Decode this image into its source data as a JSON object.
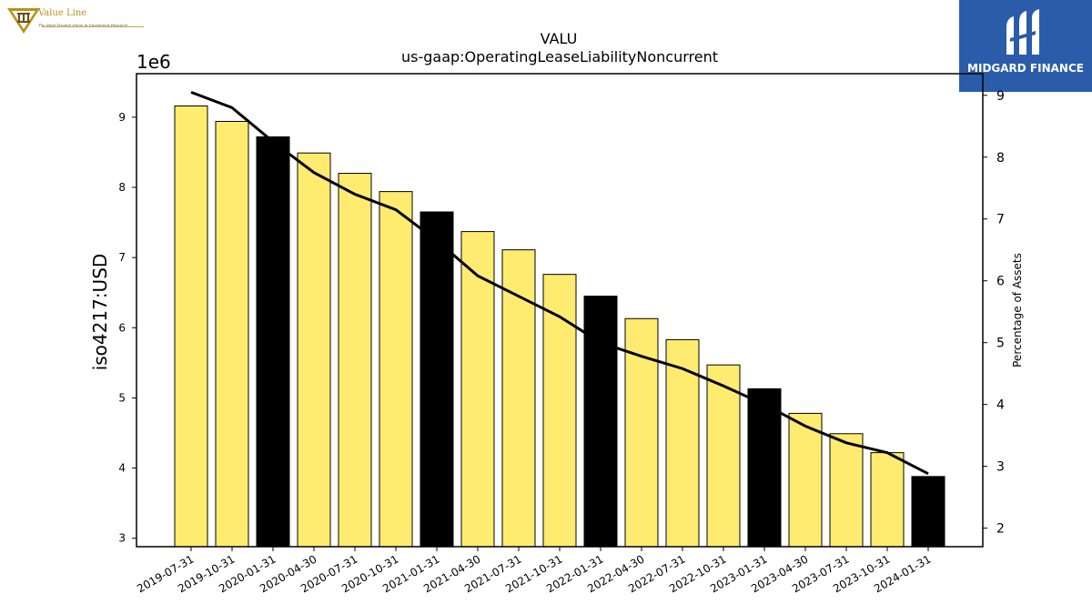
{
  "logos": {
    "left": {
      "name": "Value Line",
      "tagline": "The Most Trusted Name in Investment Research"
    },
    "right": {
      "name": "MIDGARD FINANCE"
    }
  },
  "chart_data": {
    "type": "bar",
    "title": "VALU",
    "subtitle": "us-gaap:OperatingLeaseLiabilityNoncurrent",
    "ylabel": "iso4217:USD",
    "y2label": "Percentage of Assets",
    "y_offset_label": "1e6",
    "ylim": [
      2.88,
      9.62
    ],
    "y2lim": [
      1.7,
      9.35
    ],
    "yticks": [
      "3",
      "4",
      "5",
      "6",
      "7",
      "8",
      "9"
    ],
    "y2ticks": [
      "2",
      "3",
      "4",
      "5",
      "6",
      "7",
      "8",
      "9"
    ],
    "categories": [
      "2019-07-31",
      "2019-10-31",
      "2020-01-31",
      "2020-04-30",
      "2020-07-31",
      "2020-10-31",
      "2021-01-31",
      "2021-04-30",
      "2021-07-31",
      "2021-10-31",
      "2022-01-31",
      "2022-04-30",
      "2022-07-31",
      "2022-10-31",
      "2023-01-31",
      "2023-04-30",
      "2023-07-31",
      "2023-10-31",
      "2024-01-31"
    ],
    "series": [
      {
        "type": "bar",
        "axis": "left",
        "values": [
          9.16,
          8.94,
          8.72,
          8.49,
          8.2,
          7.94,
          7.65,
          7.37,
          7.11,
          6.76,
          6.45,
          6.13,
          5.83,
          5.47,
          5.13,
          4.78,
          4.49,
          4.22,
          3.88
        ]
      },
      {
        "type": "line",
        "axis": "right",
        "values": [
          9.05,
          8.8,
          8.25,
          7.75,
          7.4,
          7.15,
          6.65,
          6.08,
          5.75,
          5.42,
          5.0,
          4.78,
          4.58,
          4.3,
          4.0,
          3.65,
          3.38,
          3.22,
          2.88
        ]
      }
    ],
    "highlighted_indices": [
      2,
      6,
      10,
      14,
      18
    ],
    "colors": {
      "bar": "#ffeb70",
      "bar_highlight": "#000000",
      "line": "#000000"
    },
    "grid": false,
    "legend": "none"
  }
}
